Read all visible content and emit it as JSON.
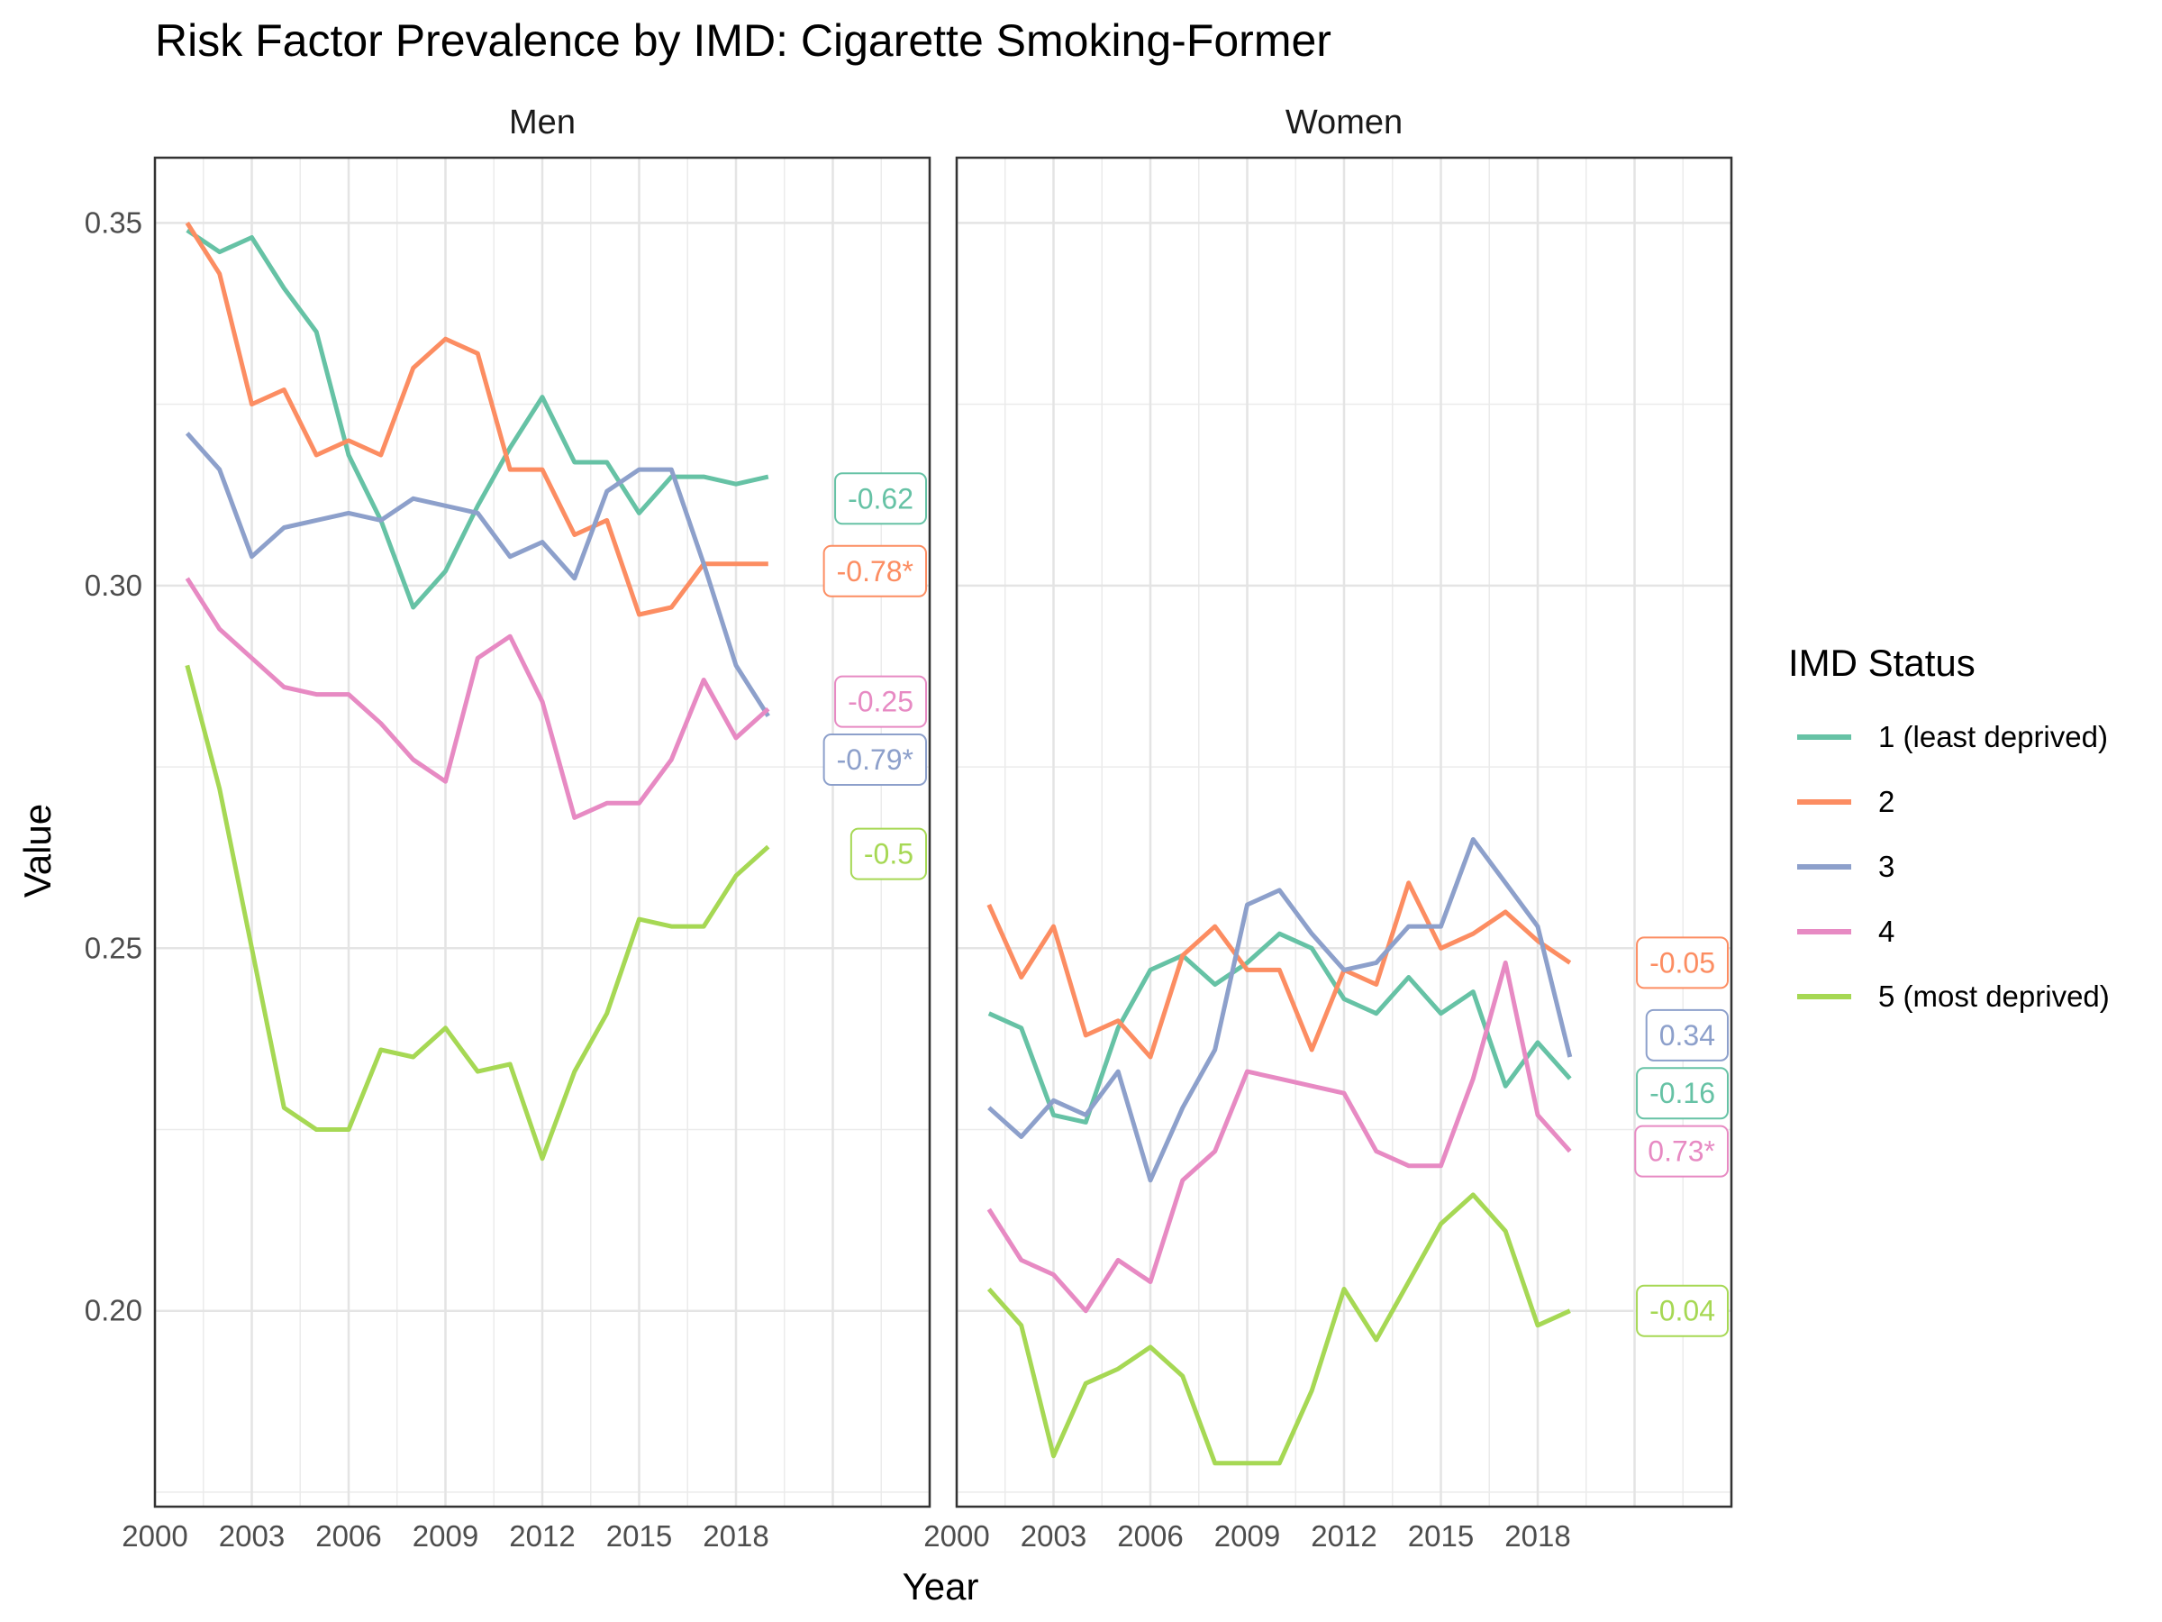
{
  "chart_data": {
    "type": "line",
    "title": "Risk Factor Prevalence by IMD: Cigarette Smoking-Former",
    "xlabel": "Year",
    "ylabel": "Value",
    "xlim": [
      2000,
      2024
    ],
    "ylim": [
      0.173,
      0.359
    ],
    "x_ticks": [
      "2000",
      "2003",
      "2006",
      "2009",
      "2012",
      "2015",
      "2018"
    ],
    "y_ticks": [
      "0.20",
      "0.25",
      "0.30",
      "0.35"
    ],
    "grid": true,
    "legend": {
      "title": "IMD Status",
      "position": "right",
      "entries": [
        "1 (least deprived)",
        "2",
        "3",
        "4",
        "5 (most deprived)"
      ]
    },
    "colors": [
      "#66c2a5",
      "#fc8d62",
      "#8da0cb",
      "#e78ac3",
      "#a6d854"
    ],
    "x": [
      2001,
      2002,
      2003,
      2004,
      2005,
      2006,
      2007,
      2008,
      2009,
      2010,
      2011,
      2012,
      2013,
      2014,
      2015,
      2016,
      2017,
      2018,
      2019
    ],
    "panels": [
      {
        "name": "Men",
        "series": [
          {
            "name": "1 (least deprived)",
            "values": [
              0.349,
              0.346,
              0.348,
              0.341,
              0.335,
              0.318,
              0.309,
              0.297,
              0.302,
              0.311,
              0.319,
              0.326,
              0.317,
              0.317,
              0.31,
              0.315,
              0.315,
              0.314,
              0.315
            ],
            "label": "-0.62",
            "label_y": 0.312
          },
          {
            "name": "2",
            "values": [
              0.35,
              0.343,
              0.325,
              0.327,
              0.318,
              0.32,
              0.318,
              0.33,
              0.334,
              0.332,
              0.316,
              0.316,
              0.307,
              0.309,
              0.296,
              0.297,
              0.303,
              0.303,
              0.303
            ],
            "label": "-0.78*",
            "label_y": 0.302
          },
          {
            "name": "3",
            "values": [
              0.321,
              0.316,
              0.304,
              0.308,
              0.309,
              0.31,
              0.309,
              0.312,
              0.311,
              0.31,
              0.304,
              0.306,
              0.301,
              0.313,
              0.316,
              0.316,
              0.303,
              0.289,
              0.282
            ],
            "label": "-0.79*",
            "label_y": 0.276
          },
          {
            "name": "4",
            "values": [
              0.301,
              0.294,
              0.29,
              0.286,
              0.285,
              0.285,
              0.281,
              0.276,
              0.273,
              0.29,
              0.293,
              0.284,
              0.268,
              0.27,
              0.27,
              0.276,
              0.287,
              0.279,
              0.283
            ],
            "label": "-0.25",
            "label_y": 0.284
          },
          {
            "name": "5 (most deprived)",
            "values": [
              0.289,
              0.272,
              0.25,
              0.228,
              0.225,
              0.225,
              0.236,
              0.235,
              0.239,
              0.233,
              0.234,
              0.221,
              0.233,
              0.241,
              0.254,
              0.253,
              0.253,
              0.26,
              0.264
            ],
            "label": "-0.5",
            "label_y": 0.263
          }
        ]
      },
      {
        "name": "Women",
        "series": [
          {
            "name": "1 (least deprived)",
            "values": [
              0.241,
              0.239,
              0.227,
              0.226,
              0.239,
              0.247,
              0.249,
              0.245,
              0.248,
              0.252,
              0.25,
              0.243,
              0.241,
              0.246,
              0.241,
              0.244,
              0.231,
              0.237,
              0.232
            ],
            "label": "-0.16",
            "label_y": 0.23
          },
          {
            "name": "2",
            "values": [
              0.256,
              0.246,
              0.253,
              0.238,
              0.24,
              0.235,
              0.249,
              0.253,
              0.247,
              0.247,
              0.236,
              0.247,
              0.245,
              0.259,
              0.25,
              0.252,
              0.255,
              0.251,
              0.248
            ],
            "label": "-0.05",
            "label_y": 0.248
          },
          {
            "name": "3",
            "values": [
              0.228,
              0.224,
              0.229,
              0.227,
              0.233,
              0.218,
              0.228,
              0.236,
              0.256,
              0.258,
              0.252,
              0.247,
              0.248,
              0.253,
              0.253,
              0.265,
              0.259,
              0.253,
              0.235
            ],
            "label": "0.34",
            "label_y": 0.238
          },
          {
            "name": "4",
            "values": [
              0.214,
              0.207,
              0.205,
              0.2,
              0.207,
              0.204,
              0.218,
              0.222,
              0.233,
              0.232,
              0.231,
              0.23,
              0.222,
              0.22,
              0.22,
              0.232,
              0.248,
              0.227,
              0.222
            ],
            "label": "0.73*",
            "label_y": 0.222
          },
          {
            "name": "5 (most deprived)",
            "values": [
              0.203,
              0.198,
              0.18,
              0.19,
              0.192,
              0.195,
              0.191,
              0.179,
              0.179,
              0.179,
              0.189,
              0.203,
              0.196,
              0.204,
              0.212,
              0.216,
              0.211,
              0.198,
              0.2
            ],
            "label": "-0.04",
            "label_y": 0.2
          }
        ]
      }
    ]
  }
}
